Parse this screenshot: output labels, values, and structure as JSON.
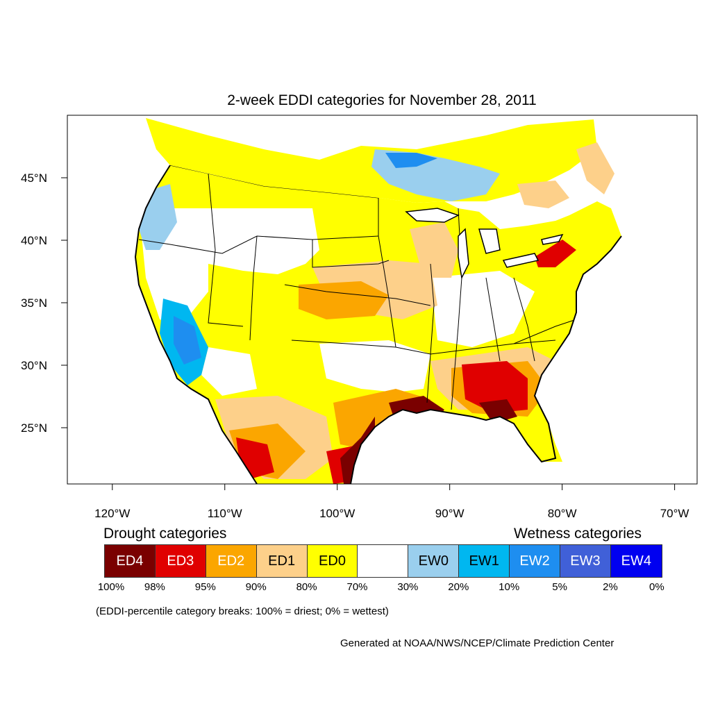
{
  "title": "2-week EDDI categories for November 28, 2011",
  "map": {
    "lon_range": [
      -124,
      -68
    ],
    "lat_range": [
      20.5,
      50
    ],
    "lat_ticks": [
      {
        "value": 45,
        "label": "45°N"
      },
      {
        "value": 40,
        "label": "40°N"
      },
      {
        "value": 35,
        "label": "35°N"
      },
      {
        "value": 30,
        "label": "30°N"
      },
      {
        "value": 25,
        "label": "25°N"
      }
    ],
    "lon_ticks": [
      {
        "value": -120,
        "label": "120°W"
      },
      {
        "value": -110,
        "label": "110°W"
      },
      {
        "value": -100,
        "label": "100°W"
      },
      {
        "value": -90,
        "label": "90°W"
      },
      {
        "value": -80,
        "label": "80°W"
      },
      {
        "value": -70,
        "label": "70°W"
      }
    ],
    "colors": {
      "ED4": "#7a0000",
      "ED3": "#e00000",
      "ED2": "#fba600",
      "ED1": "#fdd08a",
      "ED0": "#ffff00",
      "neutral": "#ffffff",
      "EW0": "#9acfee",
      "EW1": "#00b7f0",
      "EW2": "#1e8ef0",
      "EW3": "#4060d8",
      "EW4": "#0000f0"
    }
  },
  "legend": {
    "drought_heading": "Drought categories",
    "wetness_heading": "Wetness categories",
    "categories": [
      {
        "label": "ED4",
        "color": "#7a0000",
        "text_color": "#ffffff"
      },
      {
        "label": "ED3",
        "color": "#e00000",
        "text_color": "#ffffff"
      },
      {
        "label": "ED2",
        "color": "#fba600",
        "text_color": "#ffffff"
      },
      {
        "label": "ED1",
        "color": "#fdd08a",
        "text_color": "#000000"
      },
      {
        "label": "ED0",
        "color": "#ffff00",
        "text_color": "#000000"
      },
      {
        "label": "",
        "color": "#ffffff",
        "text_color": "#000000"
      },
      {
        "label": "EW0",
        "color": "#9acfee",
        "text_color": "#000000"
      },
      {
        "label": "EW1",
        "color": "#00b7f0",
        "text_color": "#000000"
      },
      {
        "label": "EW2",
        "color": "#1e8ef0",
        "text_color": "#ffffff"
      },
      {
        "label": "EW3",
        "color": "#4060d8",
        "text_color": "#ffffff"
      },
      {
        "label": "EW4",
        "color": "#0000f0",
        "text_color": "#ffffff"
      }
    ],
    "breaks": [
      "100%",
      "98%",
      "95%",
      "90%",
      "80%",
      "70%",
      "30%",
      "20%",
      "10%",
      "5%",
      "2%",
      "0%"
    ],
    "note": "(EDDI-percentile category breaks: 100% = driest; 0% = wettest)"
  },
  "footer": "Generated at NOAA/NWS/NCEP/Climate Prediction Center"
}
